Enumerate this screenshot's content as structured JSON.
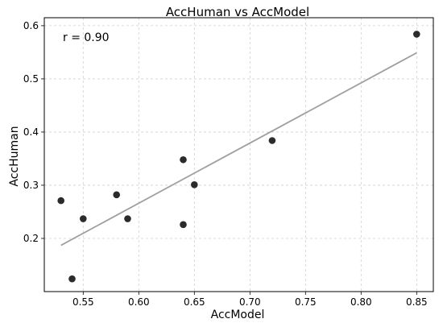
{
  "chart_data": {
    "type": "scatter",
    "title": "AccHuman vs AccModel",
    "xlabel": "AccModel",
    "ylabel": "AccHuman",
    "annotation": "r = 0.90",
    "xlim": [
      0.515,
      0.865
    ],
    "ylim": [
      0.1,
      0.615
    ],
    "xticks": [
      0.55,
      0.6,
      0.65,
      0.7,
      0.75,
      0.8,
      0.85
    ],
    "xtick_labels": [
      "0.55",
      "0.60",
      "0.65",
      "0.70",
      "0.75",
      "0.80",
      "0.85"
    ],
    "yticks": [
      0.2,
      0.3,
      0.4,
      0.5,
      0.6
    ],
    "ytick_labels": [
      "0.2",
      "0.3",
      "0.4",
      "0.5",
      "0.6"
    ],
    "grid": true,
    "points": [
      {
        "x": 0.53,
        "y": 0.271
      },
      {
        "x": 0.54,
        "y": 0.124
      },
      {
        "x": 0.55,
        "y": 0.237
      },
      {
        "x": 0.58,
        "y": 0.282
      },
      {
        "x": 0.59,
        "y": 0.237
      },
      {
        "x": 0.64,
        "y": 0.348
      },
      {
        "x": 0.64,
        "y": 0.226
      },
      {
        "x": 0.65,
        "y": 0.301
      },
      {
        "x": 0.72,
        "y": 0.384
      },
      {
        "x": 0.85,
        "y": 0.584
      }
    ],
    "fit_line": {
      "x": [
        0.53,
        0.85
      ],
      "y": [
        0.187,
        0.549
      ]
    },
    "point_color": "#2b2b2b",
    "line_color": "#a0a0a0"
  }
}
